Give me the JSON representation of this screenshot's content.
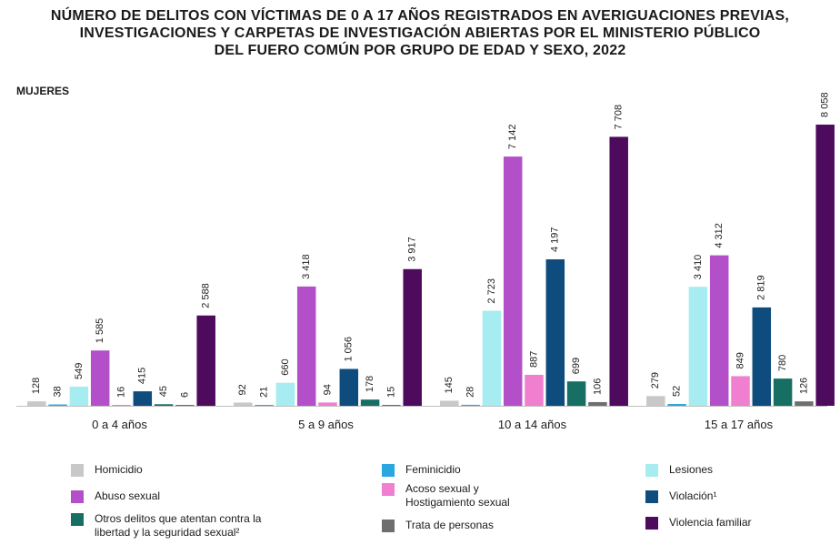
{
  "title_lines": [
    "NÚMERO DE DELITOS CON VÍCTIMAS DE 0 A 17 AÑOS REGISTRADOS EN AVERIGUACIONES PREVIAS,",
    "INVESTIGACIONES Y CARPETAS DE INVESTIGACIÓN ABIERTAS POR EL MINISTERIO PÚBLICO",
    "DEL FUERO COMÚN POR GRUPO DE EDAD Y SEXO, 2022"
  ],
  "subtitle": "MUJERES",
  "chart_data": {
    "type": "bar",
    "title": "NÚMERO DE DELITOS CON VÍCTIMAS DE 0 A 17 AÑOS REGISTRADOS EN AVERIGUACIONES PREVIAS, INVESTIGACIONES Y CARPETAS DE INVESTIGACIÓN ABIERTAS POR EL MINISTERIO PÚBLICO DEL FUERO COMÚN POR GRUPO DE EDAD Y SEXO, 2022",
    "subtitle": "MUJERES",
    "categories": [
      "0 a 4 años",
      "5 a 9 años",
      "10 a 14 años",
      "15 a 17 años"
    ],
    "ylim": [
      0,
      8500
    ],
    "grid": false,
    "legend_position": "bottom",
    "series": [
      {
        "name": "Homicidio",
        "color": "#c8c8c8",
        "values": [
          128,
          92,
          145,
          279
        ],
        "labels": [
          "128",
          "92",
          "145",
          "279"
        ]
      },
      {
        "name": "Feminicidio",
        "color": "#2aa7e0",
        "values": [
          38,
          21,
          28,
          52
        ],
        "labels": [
          "38",
          "21",
          "28",
          "52"
        ]
      },
      {
        "name": "Lesiones",
        "color": "#a6ecf0",
        "values": [
          549,
          660,
          2723,
          3410
        ],
        "labels": [
          "549",
          "660",
          "2 723",
          "3 410"
        ]
      },
      {
        "name": "Abuso sexual",
        "color": "#b24fc9",
        "values": [
          1585,
          3418,
          7142,
          4312
        ],
        "labels": [
          "1 585",
          "3 418",
          "7 142",
          "4 312"
        ]
      },
      {
        "name": "Acoso sexual y\nHostigamiento sexual",
        "color": "#f07fcf",
        "values": [
          16,
          94,
          887,
          849
        ],
        "labels": [
          "16",
          "94",
          "887",
          "849"
        ]
      },
      {
        "name": "Violación¹",
        "color": "#0e4c7d",
        "values": [
          415,
          1056,
          4197,
          2819
        ],
        "labels": [
          "415",
          "1 056",
          "4 197",
          "2 819"
        ]
      },
      {
        "name": "Otros delitos que atentan contra la\nlibertad y la seguridad sexual²",
        "color": "#176e63",
        "values": [
          45,
          178,
          699,
          780
        ],
        "labels": [
          "45",
          "178",
          "699",
          "780"
        ]
      },
      {
        "name": "Trata de personas",
        "color": "#6e6e6e",
        "values": [
          6,
          15,
          106,
          126
        ],
        "labels": [
          "6",
          "15",
          "106",
          "126"
        ]
      },
      {
        "name": "Violencia familiar",
        "color": "#4e0a5c",
        "values": [
          2588,
          3917,
          7708,
          8058
        ],
        "labels": [
          "2 588",
          "3 917",
          "7 708",
          "8 058"
        ]
      }
    ]
  },
  "legend_order": [
    0,
    1,
    2,
    3,
    4,
    5,
    6,
    7,
    8
  ]
}
